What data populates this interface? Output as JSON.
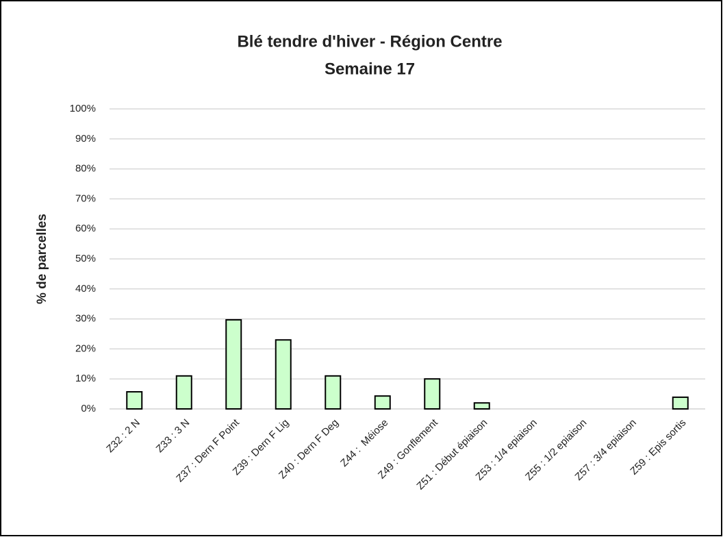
{
  "chart_data": {
    "type": "bar",
    "title": "Blé tendre d'hiver - Région Centre",
    "subtitle": "Semaine 17",
    "y_label": "% de parcelles",
    "categories": [
      "Z32 : 2 N",
      "Z33 : 3 N",
      "Z37 : Dern F Point",
      "Z39 : Dern F Lig",
      "Z40 : Dern F Deg",
      "Z44 :  Méiose",
      "Z49 : Gonflement",
      "Z51 : Début épiaison",
      "Z53 : 1/4 epiaison",
      "Z55 : 1/2 epiaison",
      "Z57 : 3/4 epiaison",
      "Z59 : Epis sortis"
    ],
    "values": [
      5.7,
      11,
      29.7,
      23,
      11,
      4.3,
      10,
      2,
      0,
      0,
      0,
      3.9
    ],
    "color": "#ccffcc",
    "ylim": [
      0,
      100
    ],
    "yticks": [
      {
        "value": 0,
        "label": "0%"
      },
      {
        "value": 10,
        "label": "10%"
      },
      {
        "value": 20,
        "label": "20%"
      },
      {
        "value": 30,
        "label": "30%"
      },
      {
        "value": 40,
        "label": "40%"
      },
      {
        "value": 50,
        "label": "50%"
      },
      {
        "value": 60,
        "label": "60%"
      },
      {
        "value": 70,
        "label": "70%"
      },
      {
        "value": 80,
        "label": "80%"
      },
      {
        "value": 90,
        "label": "90%"
      },
      {
        "value": 100,
        "label": "100%"
      }
    ],
    "grid": true
  }
}
